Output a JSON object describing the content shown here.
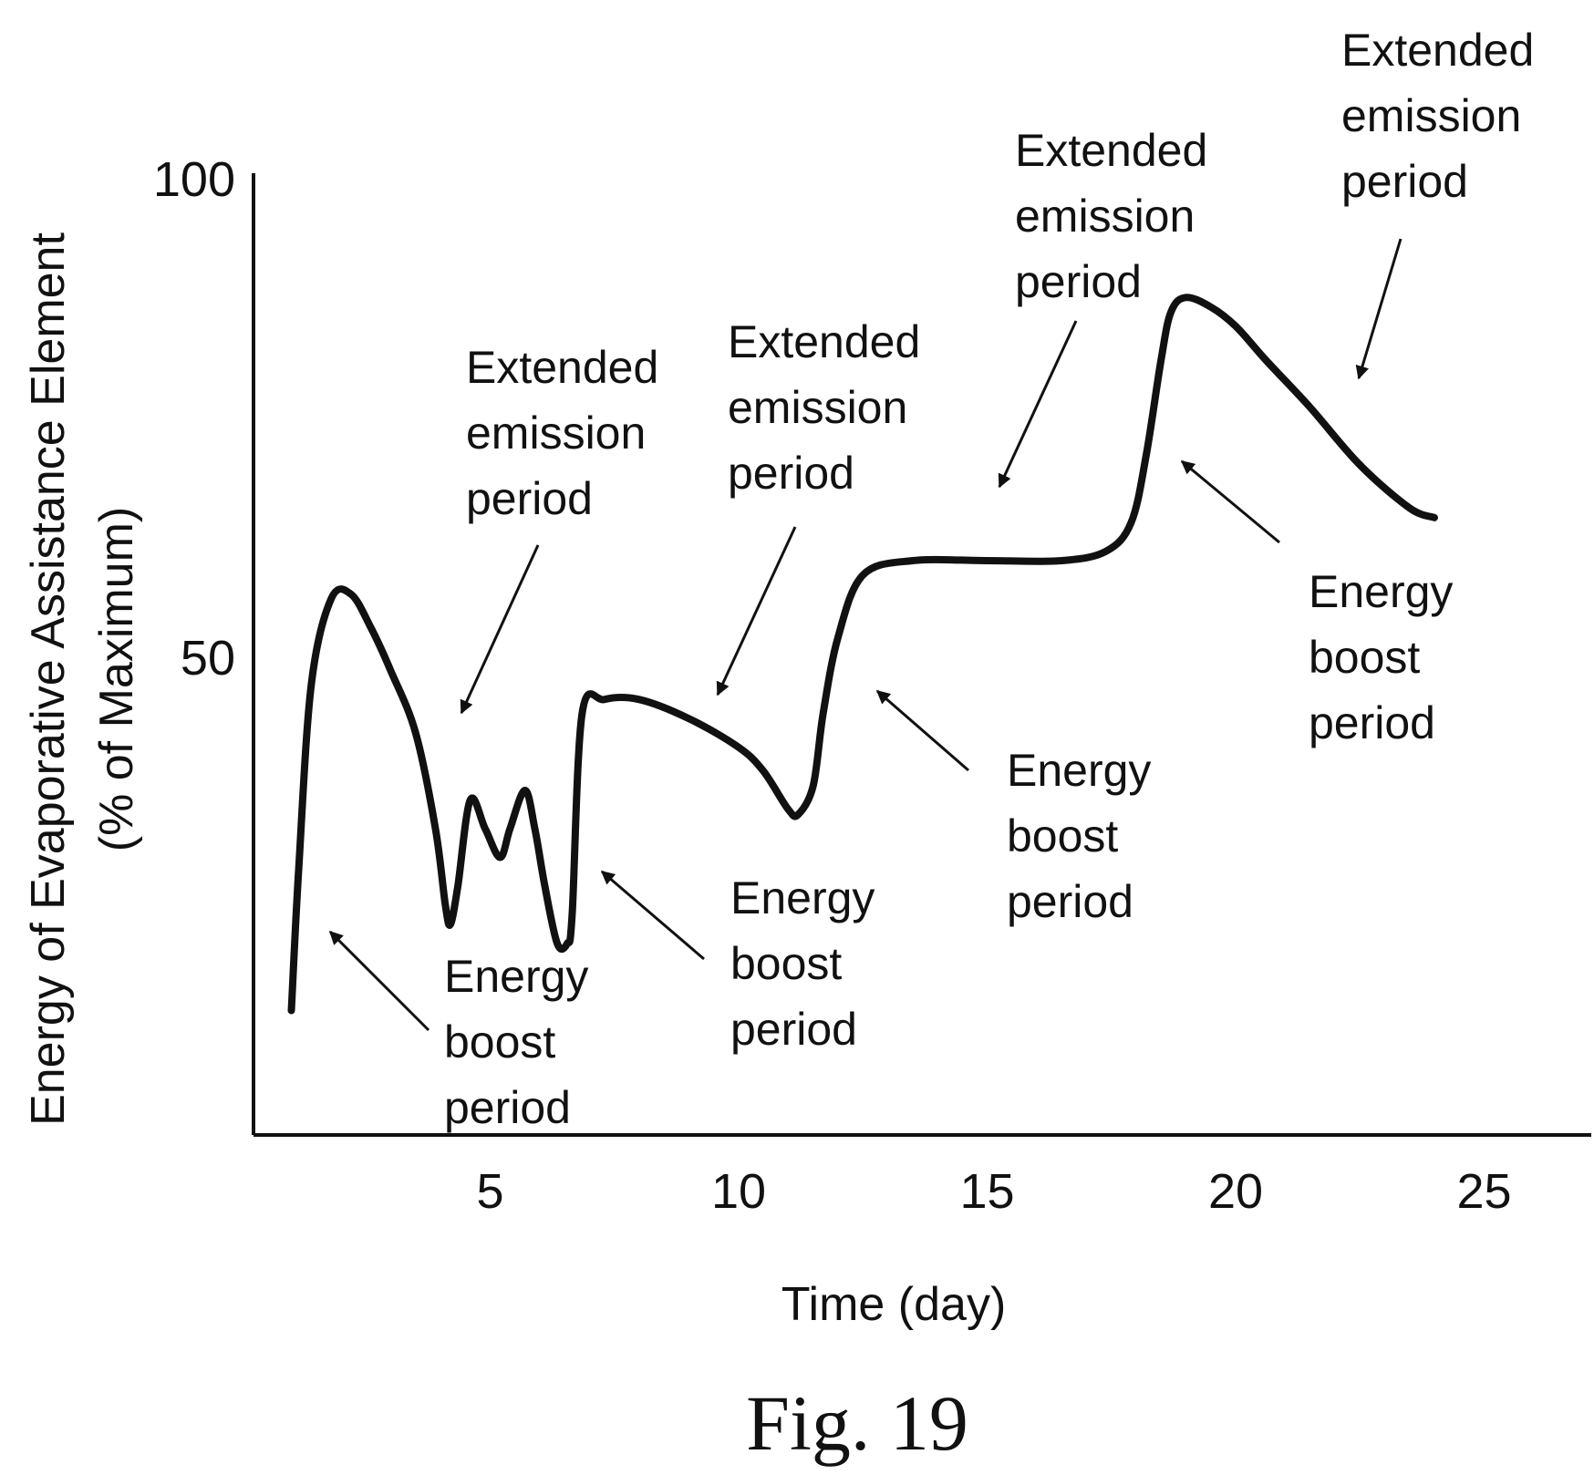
{
  "chart_data": {
    "type": "line",
    "figure_label": "Fig. 19",
    "xlabel": "Time (day)",
    "ylabel": [
      "Energy of Evaporative Assistance Element",
      "(% of Maximum)"
    ],
    "xlim": [
      0,
      27
    ],
    "ylim": [
      0,
      100
    ],
    "x_ticks": [
      5,
      10,
      15,
      20,
      25
    ],
    "y_ticks": [
      50,
      100
    ],
    "grid": false,
    "legend": "none",
    "line_color": "#111111",
    "series": [
      {
        "x": [
          1.0,
          1.15,
          1.4,
          1.8,
          2.2,
          2.6,
          3.0,
          3.5,
          3.9,
          4.1,
          4.2,
          4.35,
          4.6,
          4.9,
          5.2,
          5.4,
          5.7,
          5.9,
          6.1,
          6.35,
          6.55,
          6.65,
          6.85,
          7.3,
          8.0,
          9.0,
          10.0,
          10.5,
          11.0,
          11.2,
          11.5,
          11.7,
          12.0,
          12.5,
          13.5,
          15.0,
          16.5,
          17.4,
          17.9,
          18.2,
          18.5,
          18.7,
          19.0,
          19.5,
          20.0,
          20.6,
          21.5,
          22.5,
          23.5,
          24.0
        ],
        "y": [
          13,
          28,
          47,
          56,
          56.5,
          53,
          48.5,
          42,
          32,
          24,
          22,
          26,
          35,
          32,
          29,
          32,
          36,
          32,
          26,
          20,
          20,
          23,
          44,
          45.5,
          45.5,
          43.5,
          40.5,
          38,
          34,
          33.5,
          36.5,
          44,
          52,
          58.5,
          60,
          60,
          60,
          61,
          64,
          71,
          81,
          86,
          87.5,
          86.5,
          84.5,
          81,
          76,
          70,
          65.5,
          64.5
        ]
      }
    ],
    "annotations": [
      {
        "text": [
          "Energy",
          "boost",
          "period"
        ]
      },
      {
        "text": [
          "Extended",
          "emission",
          "period"
        ]
      },
      {
        "text": [
          "Energy",
          "boost",
          "period"
        ]
      },
      {
        "text": [
          "Extended",
          "emission",
          "period"
        ]
      },
      {
        "text": [
          "Energy",
          "boost",
          "period"
        ]
      },
      {
        "text": [
          "Extended",
          "emission",
          "period"
        ]
      },
      {
        "text": [
          "Energy",
          "boost",
          "period"
        ]
      },
      {
        "text": [
          "Extended",
          "emission",
          "period"
        ]
      }
    ]
  }
}
